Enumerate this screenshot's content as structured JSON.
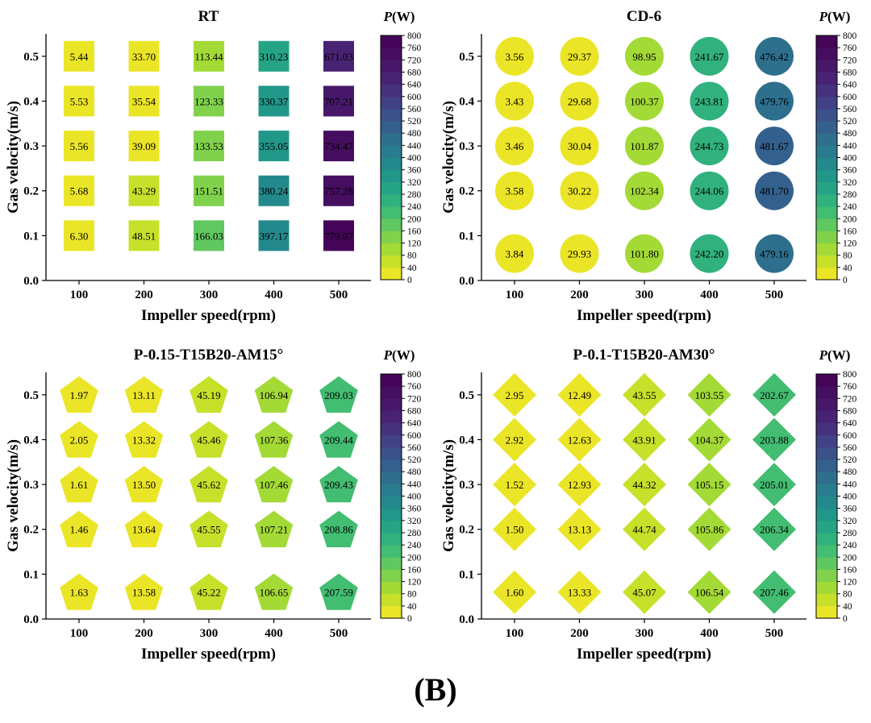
{
  "caption": "(B)",
  "colorbar": {
    "title_var": "P",
    "title_unit": "(W)",
    "min": 0,
    "max": 800,
    "step": 40,
    "ticks": [
      0,
      40,
      80,
      120,
      160,
      200,
      240,
      280,
      320,
      360,
      400,
      440,
      480,
      520,
      560,
      600,
      640,
      680,
      720,
      760,
      800
    ]
  },
  "chart_data": [
    {
      "type": "scatter",
      "title": "RT",
      "marker": "square",
      "xlabel": "Impeller speed(rpm)",
      "ylabel": "Gas velocity(m/s)",
      "categories": [
        "100",
        "200",
        "300",
        "400",
        "500"
      ],
      "yticks": [
        "0.0",
        "0.1",
        "0.2",
        "0.3",
        "0.4",
        "0.5"
      ],
      "ylim": [
        0,
        0.55
      ],
      "y": [
        0.5,
        0.4,
        0.3,
        0.2,
        0.1
      ],
      "values": [
        [
          5.44,
          33.7,
          113.44,
          310.23,
          671.03
        ],
        [
          5.53,
          35.54,
          123.33,
          330.37,
          707.21
        ],
        [
          5.56,
          39.09,
          133.53,
          355.05,
          734.47
        ],
        [
          5.68,
          43.29,
          151.51,
          380.24,
          757.28
        ],
        [
          6.3,
          48.51,
          166.03,
          397.17,
          779.07
        ]
      ],
      "labels": [
        [
          "5.44",
          "33.70",
          "113.44",
          "310.23",
          "671.03"
        ],
        [
          "5.53",
          "35.54",
          "123.33",
          "330.37",
          "707.21"
        ],
        [
          "5.56",
          "39.09",
          "133.53",
          "355.05",
          "734.47"
        ],
        [
          "5.68",
          "43.29",
          "151.51",
          "380.24",
          "757.28"
        ],
        [
          "6.30",
          "48.51",
          "166.03",
          "397.17",
          "779.07"
        ]
      ]
    },
    {
      "type": "scatter",
      "title": "CD-6",
      "marker": "circle",
      "xlabel": "Impeller speed(rpm)",
      "ylabel": "Gas velocity(m/s)",
      "categories": [
        "100",
        "200",
        "300",
        "400",
        "500"
      ],
      "yticks": [
        "0.0",
        "0.1",
        "0.2",
        "0.3",
        "0.4",
        "0.5"
      ],
      "ylim": [
        0,
        0.55
      ],
      "y": [
        0.5,
        0.4,
        0.3,
        0.2,
        0.06
      ],
      "values": [
        [
          3.56,
          29.37,
          98.95,
          241.67,
          476.42
        ],
        [
          3.43,
          29.68,
          100.37,
          243.81,
          479.76
        ],
        [
          3.46,
          30.04,
          101.87,
          244.73,
          481.67
        ],
        [
          3.58,
          30.22,
          102.34,
          244.06,
          481.7
        ],
        [
          3.84,
          29.93,
          101.8,
          242.2,
          479.16
        ]
      ],
      "labels": [
        [
          "3.56",
          "29.37",
          "98.95",
          "241.67",
          "476.42"
        ],
        [
          "3.43",
          "29.68",
          "100.37",
          "243.81",
          "479.76"
        ],
        [
          "3.46",
          "30.04",
          "101.87",
          "244.73",
          "481.67"
        ],
        [
          "3.58",
          "30.22",
          "102.34",
          "244.06",
          "481.70"
        ],
        [
          "3.84",
          "29.93",
          "101.80",
          "242.20",
          "479.16"
        ]
      ]
    },
    {
      "type": "scatter",
      "title": "P-0.15-T15B20-AM15°",
      "marker": "pentagon",
      "xlabel": "Impeller speed(rpm)",
      "ylabel": "Gas velocity(m/s)",
      "categories": [
        "100",
        "200",
        "300",
        "400",
        "500"
      ],
      "yticks": [
        "0.0",
        "0.1",
        "0.2",
        "0.3",
        "0.4",
        "0.5"
      ],
      "ylim": [
        0,
        0.55
      ],
      "y": [
        0.5,
        0.4,
        0.3,
        0.2,
        0.06
      ],
      "values": [
        [
          1.97,
          13.11,
          45.19,
          106.94,
          209.03
        ],
        [
          2.05,
          13.32,
          45.46,
          107.36,
          209.44
        ],
        [
          1.61,
          13.5,
          45.62,
          107.46,
          209.43
        ],
        [
          1.46,
          13.64,
          45.55,
          107.21,
          208.86
        ],
        [
          1.63,
          13.58,
          45.22,
          106.65,
          207.59
        ]
      ],
      "labels": [
        [
          "1.97",
          "13.11",
          "45.19",
          "106.94",
          "209.03"
        ],
        [
          "2.05",
          "13.32",
          "45.46",
          "107.36",
          "209.44"
        ],
        [
          "1.61",
          "13.50",
          "45.62",
          "107.46",
          "209.43"
        ],
        [
          "1.46",
          "13.64",
          "45.55",
          "107.21",
          "208.86"
        ],
        [
          "1.63",
          "13.58",
          "45.22",
          "106.65",
          "207.59"
        ]
      ]
    },
    {
      "type": "scatter",
      "title": "P-0.1-T15B20-AM30°",
      "marker": "diamond",
      "xlabel": "Impeller speed(rpm)",
      "ylabel": "Gas velocity(m/s)",
      "categories": [
        "100",
        "200",
        "300",
        "400",
        "500"
      ],
      "yticks": [
        "0.0",
        "0.1",
        "0.2",
        "0.3",
        "0.4",
        "0.5"
      ],
      "ylim": [
        0,
        0.55
      ],
      "y": [
        0.5,
        0.4,
        0.3,
        0.2,
        0.06
      ],
      "values": [
        [
          2.95,
          12.49,
          43.55,
          103.55,
          202.67
        ],
        [
          2.92,
          12.63,
          43.91,
          104.37,
          203.88
        ],
        [
          1.52,
          12.93,
          44.32,
          105.15,
          205.01
        ],
        [
          1.5,
          13.13,
          44.74,
          105.86,
          206.34
        ],
        [
          1.6,
          13.33,
          45.07,
          106.54,
          207.46
        ]
      ],
      "labels": [
        [
          "2.95",
          "12.49",
          "43.55",
          "103.55",
          "202.67"
        ],
        [
          "2.92",
          "12.63",
          "43.91",
          "104.37",
          "203.88"
        ],
        [
          "1.52",
          "12.93",
          "44.32",
          "105.15",
          "205.01"
        ],
        [
          "1.50",
          "13.13",
          "44.74",
          "105.86",
          "206.34"
        ],
        [
          "1.60",
          "13.33",
          "45.07",
          "106.54",
          "207.46"
        ]
      ]
    }
  ]
}
